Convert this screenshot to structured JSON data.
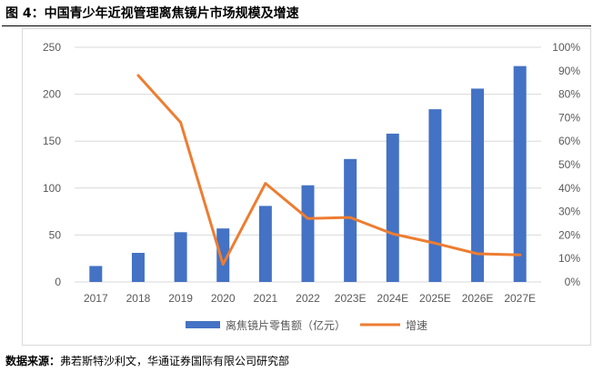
{
  "figure": {
    "title": "图 4：中国青少年近视管理离焦镜片市场规模及增速",
    "source_label": "数据来源：",
    "source_text": "弗若斯特沙利文，华通证券国际有限公司研究部"
  },
  "colors": {
    "bar": "#4472C4",
    "line": "#ED7D31",
    "grid": "#d9d9d9",
    "axis_text": "#595959"
  },
  "chart_data": {
    "type": "bar",
    "title": "图 4：中国青少年近视管理离焦镜片市场规模及增速",
    "categories": [
      "2017",
      "2018",
      "2019",
      "2020",
      "2021",
      "2022",
      "2023E",
      "2024E",
      "2025E",
      "2026E",
      "2027E"
    ],
    "series": [
      {
        "name": "离焦镜片零售额（亿元）",
        "type": "bar",
        "axis": "left",
        "values": [
          17,
          31,
          53,
          57,
          81,
          103,
          131,
          158,
          184,
          206,
          230
        ]
      },
      {
        "name": "增速",
        "type": "line",
        "axis": "right",
        "values": [
          null,
          0.88,
          0.68,
          0.075,
          0.42,
          0.27,
          0.275,
          0.205,
          0.165,
          0.12,
          0.115
        ]
      }
    ],
    "y_left": {
      "lim": [
        0,
        250
      ],
      "ticks": [
        0,
        50,
        100,
        150,
        200,
        250
      ]
    },
    "y_right": {
      "lim": [
        0,
        1
      ],
      "ticks": [
        0,
        0.1,
        0.2,
        0.3,
        0.4,
        0.5,
        0.6,
        0.7,
        0.8,
        0.9,
        1.0
      ],
      "tick_labels": [
        "0%",
        "10%",
        "20%",
        "30%",
        "40%",
        "50%",
        "60%",
        "70%",
        "80%",
        "90%",
        "100%"
      ]
    },
    "grid": true,
    "legend_position": "bottom"
  }
}
